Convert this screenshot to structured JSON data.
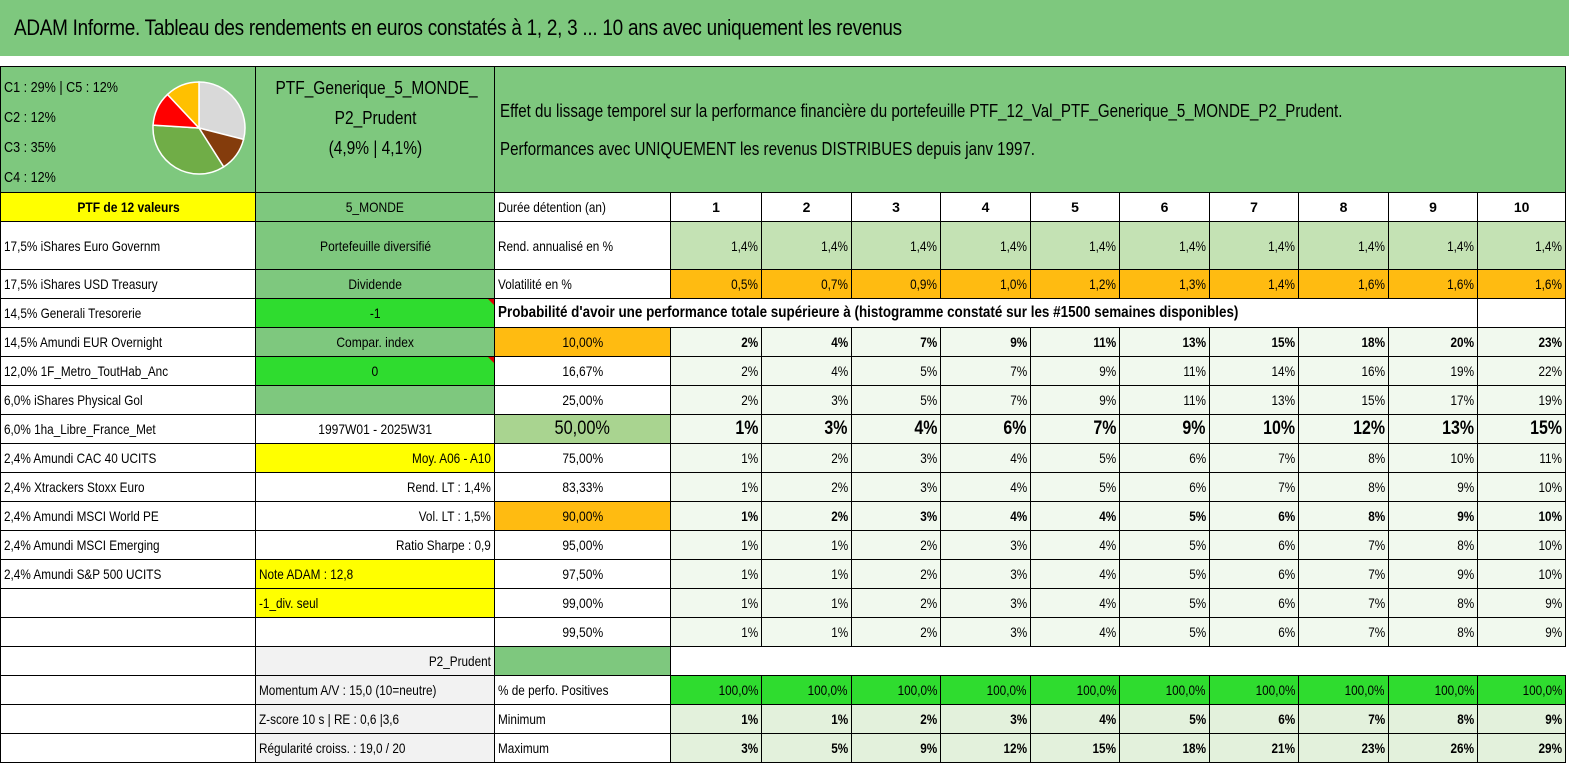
{
  "title": "ADAM Informe. Tableau des rendements en euros constatés à 1, 2, 3 ... 10 ans avec uniquement les revenus",
  "legend": [
    {
      "label": "C1 : 29% | C5 : 12%"
    },
    {
      "label": "C2 : 12%"
    },
    {
      "label": "C3 : 35%"
    },
    {
      "label": "C4 : 12%"
    }
  ],
  "pie": {
    "slices": [
      {
        "name": "C1",
        "value": 29,
        "color": "#d9d9d9"
      },
      {
        "name": "C2",
        "value": 12,
        "color": "#843c0c"
      },
      {
        "name": "C3",
        "value": 35,
        "color": "#70ad47"
      },
      {
        "name": "C4",
        "value": 12,
        "color": "#ff0000"
      },
      {
        "name": "C5",
        "value": 12,
        "color": "#ffc000"
      }
    ]
  },
  "portfolio": {
    "name_line1": "PTF_Generique_5_MONDE_",
    "name_line2": "P2_Prudent",
    "name_line3": "(4,9% | 4,1%)"
  },
  "description": {
    "line1": "Effet du lissage temporel sur la performance financière du portefeuille PTF_12_Val_PTF_Generique_5_MONDE_P2_Prudent.",
    "line2": "Performances avec UNIQUEMENT les revenus DISTRIBUES depuis janv 1997."
  },
  "header_row": {
    "left": "PTF de 12 valeurs",
    "mid": "5_MONDE",
    "label": "Durée détention (an)",
    "years": [
      "1",
      "2",
      "3",
      "4",
      "5",
      "6",
      "7",
      "8",
      "9",
      "10"
    ]
  },
  "holdings": [
    "17,5% iShares Euro Governm",
    "17,5% iShares USD Treasury",
    "14,5% Generali Tresorerie",
    "14,5% Amundi EUR Overnight",
    "12,0% 1F_Metro_ToutHab_Anc",
    "6,0% iShares Physical Gol",
    "6,0% 1ha_Libre_France_Met",
    "2,4% Amundi CAC 40 UCITS",
    "2,4% Xtrackers Stoxx Euro",
    "2,4% Amundi MSCI World PE",
    "2,4% Amundi MSCI Emerging",
    "2,4% Amundi S&P 500 UCITS"
  ],
  "side": {
    "diversified": "Portefeuille diversifié",
    "dividend": "Dividende",
    "minus_one": "-1",
    "compar": "Compar. index",
    "zero": "0",
    "period": "1997W01 - 2025W31",
    "moy": "Moy. A06 - A10",
    "rend_lt": "Rend. LT : 1,4%",
    "vol_lt": "Vol. LT : 1,5%",
    "sharpe": "Ratio Sharpe : 0,9",
    "note": "Note ADAM : 12,8",
    "div_seul": "-1_div. seul",
    "profile": "P2_Prudent",
    "momentum": "Momentum A/V : 15,0 (10=neutre)",
    "zscore": "Z-score 10 s | RE : 0,6 |3,6",
    "regularite": "Régularité croiss. : 19,0 / 20"
  },
  "rend": {
    "label": "Rend. annualisé en %",
    "values": [
      "1,4%",
      "1,4%",
      "1,4%",
      "1,4%",
      "1,4%",
      "1,4%",
      "1,4%",
      "1,4%",
      "1,4%",
      "1,4%"
    ]
  },
  "vol": {
    "label": "Volatilité en %",
    "values": [
      "0,5%",
      "0,7%",
      "0,9%",
      "1,0%",
      "1,2%",
      "1,3%",
      "1,4%",
      "1,6%",
      "1,6%",
      "1,6%"
    ]
  },
  "proba_title": "Probabilité d'avoir une performance totale supérieure à (histogramme constaté sur les #1500 semaines disponibles)",
  "proba_rows": [
    {
      "threshold": "10,00%",
      "values": [
        "2%",
        "4%",
        "7%",
        "9%",
        "11%",
        "13%",
        "15%",
        "18%",
        "20%",
        "23%"
      ]
    },
    {
      "threshold": "16,67%",
      "values": [
        "2%",
        "4%",
        "5%",
        "7%",
        "9%",
        "11%",
        "14%",
        "16%",
        "19%",
        "22%"
      ]
    },
    {
      "threshold": "25,00%",
      "values": [
        "2%",
        "3%",
        "5%",
        "7%",
        "9%",
        "11%",
        "13%",
        "15%",
        "17%",
        "19%"
      ]
    },
    {
      "threshold": "50,00%",
      "values": [
        "1%",
        "3%",
        "4%",
        "6%",
        "7%",
        "9%",
        "10%",
        "12%",
        "13%",
        "15%"
      ]
    },
    {
      "threshold": "75,00%",
      "values": [
        "1%",
        "2%",
        "3%",
        "4%",
        "5%",
        "6%",
        "7%",
        "8%",
        "10%",
        "11%"
      ]
    },
    {
      "threshold": "83,33%",
      "values": [
        "1%",
        "2%",
        "3%",
        "4%",
        "5%",
        "6%",
        "7%",
        "8%",
        "9%",
        "10%"
      ]
    },
    {
      "threshold": "90,00%",
      "values": [
        "1%",
        "2%",
        "3%",
        "4%",
        "4%",
        "5%",
        "6%",
        "8%",
        "9%",
        "10%"
      ]
    },
    {
      "threshold": "95,00%",
      "values": [
        "1%",
        "1%",
        "2%",
        "3%",
        "4%",
        "5%",
        "6%",
        "7%",
        "8%",
        "10%"
      ]
    },
    {
      "threshold": "97,50%",
      "values": [
        "1%",
        "1%",
        "2%",
        "3%",
        "4%",
        "5%",
        "6%",
        "7%",
        "9%",
        "10%"
      ]
    },
    {
      "threshold": "99,00%",
      "values": [
        "1%",
        "1%",
        "2%",
        "3%",
        "4%",
        "5%",
        "6%",
        "7%",
        "8%",
        "9%"
      ]
    },
    {
      "threshold": "99,50%",
      "values": [
        "1%",
        "1%",
        "2%",
        "3%",
        "4%",
        "5%",
        "6%",
        "7%",
        "8%",
        "9%"
      ]
    }
  ],
  "positives": {
    "label": "% de perfo. Positives",
    "values": [
      "100,0%",
      "100,0%",
      "100,0%",
      "100,0%",
      "100,0%",
      "100,0%",
      "100,0%",
      "100,0%",
      "100,0%",
      "100,0%"
    ]
  },
  "minimum": {
    "label": "Minimum",
    "values": [
      "1%",
      "1%",
      "2%",
      "3%",
      "4%",
      "5%",
      "6%",
      "7%",
      "8%",
      "9%"
    ]
  },
  "maximum": {
    "label": "Maximum",
    "values": [
      "3%",
      "5%",
      "9%",
      "12%",
      "15%",
      "18%",
      "21%",
      "23%",
      "26%",
      "29%"
    ]
  }
}
